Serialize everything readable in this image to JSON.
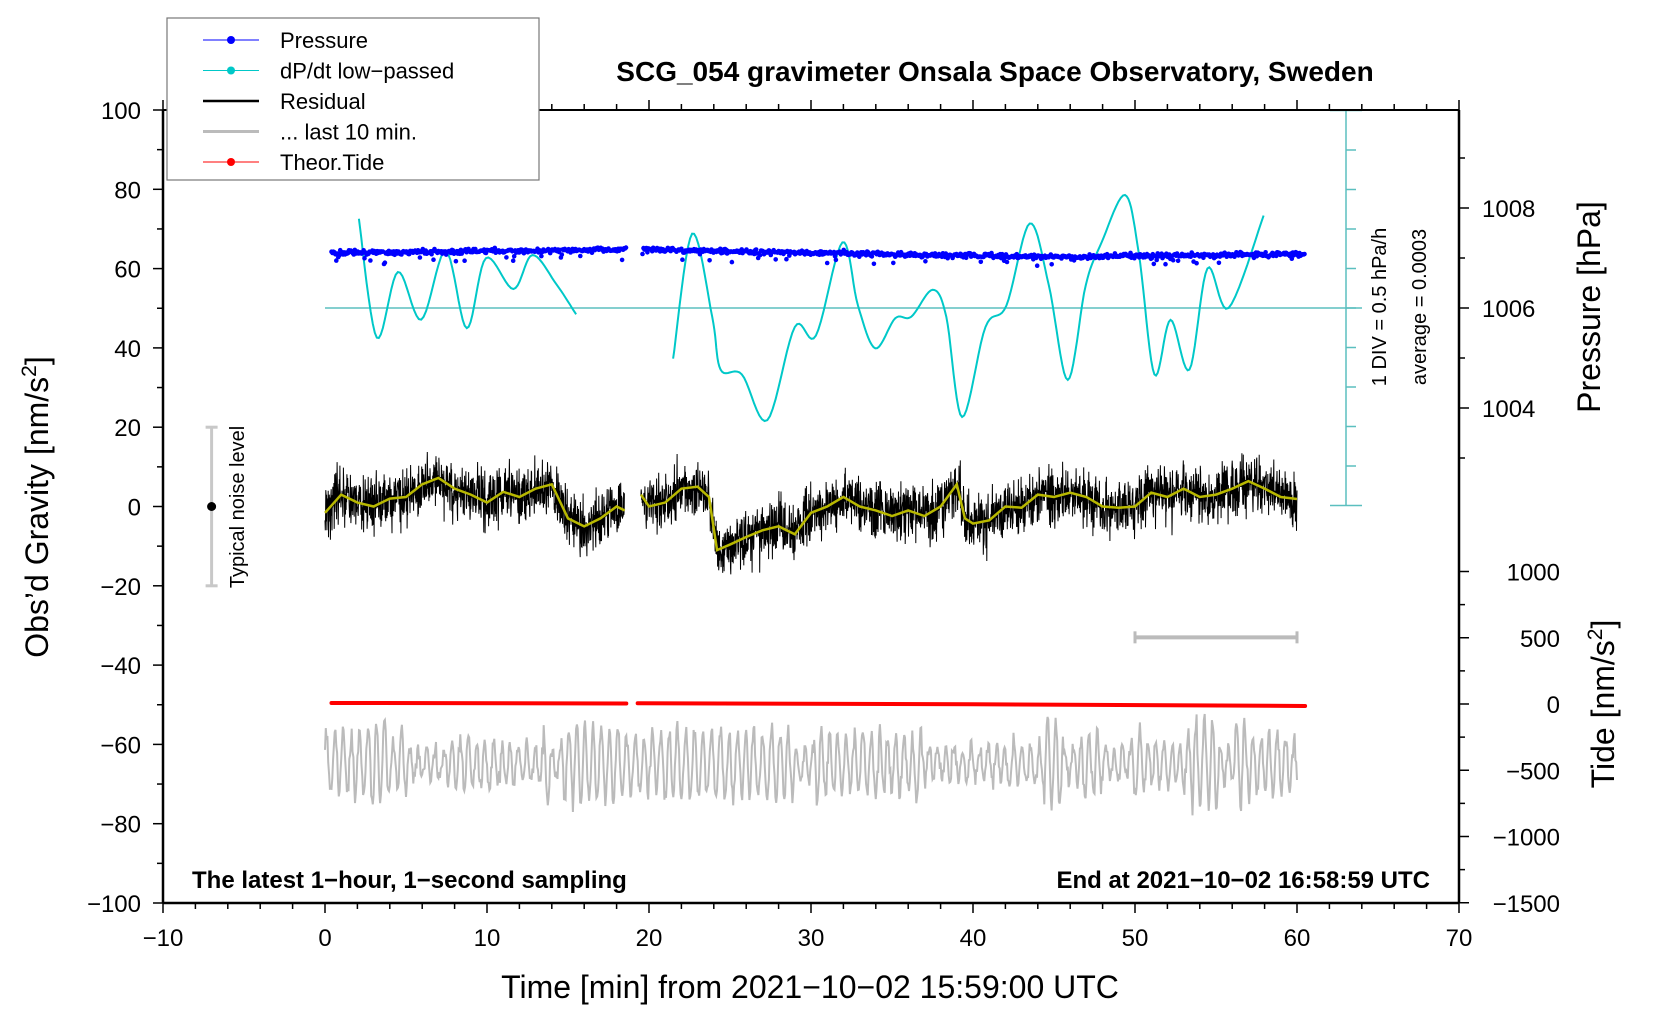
{
  "chart_data": {
    "type": "line",
    "title": "SCG_054 gravimeter Onsala Space Observatory, Sweden",
    "xlabel": "Time [min] from 2021−10−02 15:59:00 UTC",
    "ylabel": "Obs’d Gravity [nm/s",
    "ylabel_sup": "2",
    "ylabel_end": "]",
    "y2label": "Pressure [hPa]",
    "y3label": "Tide [nm/s",
    "y3label_sup": "2",
    "y3label_end": "]",
    "xlim": [
      -10,
      70
    ],
    "ylim": [
      -100,
      100
    ],
    "x_ticks": [
      -10,
      0,
      10,
      20,
      30,
      40,
      50,
      60,
      70
    ],
    "x_tick_labels": [
      "−10",
      "0",
      "10",
      "20",
      "30",
      "40",
      "50",
      "60",
      "70"
    ],
    "y_ticks": [
      -100,
      -80,
      -60,
      -40,
      -20,
      0,
      20,
      40,
      60,
      80,
      100
    ],
    "y_tick_labels": [
      "−100",
      "−80",
      "−60",
      "−40",
      "−20",
      "0",
      "20",
      "40",
      "60",
      "80",
      "100"
    ],
    "pressure_ticks": [
      1004,
      1006,
      1008
    ],
    "pressure_tick_labels": [
      "1004",
      "1006",
      "1008"
    ],
    "tide_ticks": [
      -1500,
      -1000,
      -500,
      0,
      500,
      1000
    ],
    "tide_tick_labels": [
      "−1500",
      "−1000",
      "−500",
      "0",
      "500",
      "1000"
    ],
    "grid": false,
    "legend_position": "top-left",
    "legend": [
      {
        "label": "Pressure",
        "color": "#0000ff",
        "marker": "dot"
      },
      {
        "label": "dP/dt low−passed",
        "color": "#00c8c8",
        "marker": "dot"
      },
      {
        "label": "Residual",
        "color": "#000000",
        "marker": "line"
      },
      {
        "label": "... last 10 min.",
        "color": "#bbbbbb",
        "marker": "line"
      },
      {
        "label": "Theor.Tide",
        "color": "#ff0000",
        "marker": "dot"
      }
    ],
    "annotations": {
      "bottom_left": "The latest 1−hour, 1−second sampling",
      "bottom_right": "End at 2021−10−02 16:58:59 UTC",
      "scale_div": "1 DIV = 0.5 hPa/h",
      "scale_average": "average = 0.0003",
      "noise_label": "Typical noise level"
    },
    "noise_level": {
      "x": -7,
      "center": 0,
      "half_range": 20
    },
    "last10_scale_bar": {
      "x_from": 50,
      "x_to": 60,
      "y": -33
    },
    "series": [
      {
        "name": "Pressure",
        "unit": "hPa",
        "color": "#0000ff",
        "noise": 0.05,
        "segments": [
          [
            [
              0.4,
              1007.1
            ],
            [
              10,
              1007.14
            ],
            [
              18.6,
              1007.16
            ]
          ],
          [
            [
              19.6,
              1007.17
            ],
            [
              30,
              1007.1
            ],
            [
              45,
              1007.02
            ],
            [
              60.5,
              1007.08
            ]
          ]
        ]
      },
      {
        "name": "dP/dt low-passed",
        "unit": "hPa/h",
        "color": "#00c8c8",
        "zero_level_hPa": 1006,
        "segments": [
          [
            [
              2.09,
              1.13
            ],
            [
              3.2,
              -0.375
            ],
            [
              4.5,
              0.456
            ],
            [
              5.94,
              -0.147
            ],
            [
              7.45,
              0.724
            ],
            [
              8.75,
              -0.255
            ],
            [
              9.93,
              0.63
            ],
            [
              11.63,
              0.241
            ],
            [
              12.8,
              0.67
            ],
            [
              14.3,
              0.295
            ],
            [
              15.5,
              -0.08
            ]
          ],
          [
            [
              21.49,
              -0.64
            ],
            [
              22.66,
              0.94
            ],
            [
              23.9,
              -0.11
            ],
            [
              24.42,
              -0.78
            ],
            [
              25.73,
              -0.84
            ],
            [
              27.3,
              -1.42
            ],
            [
              29.0,
              -0.24
            ],
            [
              30.3,
              -0.35
            ],
            [
              31.94,
              0.83
            ],
            [
              32.9,
              0.03
            ],
            [
              33.97,
              -0.51
            ],
            [
              35.2,
              -0.13
            ],
            [
              36.19,
              -0.11
            ],
            [
              37.5,
              0.23
            ],
            [
              38.35,
              -0.11
            ],
            [
              39.33,
              -1.38
            ],
            [
              40.77,
              -0.24
            ],
            [
              42.06,
              0.03
            ],
            [
              43.5,
              1.07
            ],
            [
              44.68,
              0.29
            ],
            [
              45.85,
              -0.91
            ],
            [
              46.96,
              0.29
            ],
            [
              47.94,
              0.83
            ],
            [
              49.38,
              1.43
            ],
            [
              50.23,
              0.7
            ],
            [
              51.2,
              -0.84
            ],
            [
              52.19,
              -0.15
            ],
            [
              53.36,
              -0.78
            ],
            [
              54.47,
              0.5
            ],
            [
              55.78,
              0.0
            ],
            [
              57.94,
              1.17
            ]
          ]
        ]
      },
      {
        "name": "Residual (smoothed)",
        "unit": "nm/s2",
        "color": "#b8b800",
        "noise_std": 3.5,
        "segments": [
          [
            [
              0,
              -1.6
            ],
            [
              1,
              3
            ],
            [
              2,
              1
            ],
            [
              3,
              0
            ],
            [
              4,
              2
            ],
            [
              5,
              2.4
            ],
            [
              6,
              5.6
            ],
            [
              7,
              7.2
            ],
            [
              8,
              4.5
            ],
            [
              9,
              3
            ],
            [
              10,
              1
            ],
            [
              11,
              3.7
            ],
            [
              12,
              2.4
            ],
            [
              13,
              4.5
            ],
            [
              14,
              5.6
            ],
            [
              15,
              -3
            ],
            [
              16,
              -5
            ],
            [
              17,
              -3
            ],
            [
              18,
              0
            ],
            [
              18.5,
              -1
            ]
          ],
          [
            [
              19.5,
              3
            ],
            [
              20,
              0
            ],
            [
              21,
              1
            ],
            [
              22,
              4.5
            ],
            [
              23,
              5
            ],
            [
              23.7,
              2.4
            ],
            [
              24.2,
              -11
            ],
            [
              25,
              -9.6
            ],
            [
              26,
              -7.7
            ],
            [
              27,
              -6
            ],
            [
              28,
              -5
            ],
            [
              29,
              -7
            ],
            [
              30,
              -1.6
            ],
            [
              31,
              0
            ],
            [
              32,
              2.4
            ],
            [
              33,
              0
            ],
            [
              34,
              -1
            ],
            [
              35,
              -2.4
            ],
            [
              36,
              -1
            ],
            [
              37,
              -2.4
            ],
            [
              38,
              0
            ],
            [
              39,
              5.6
            ],
            [
              39.5,
              -3
            ],
            [
              40,
              -4.3
            ],
            [
              41,
              -3.5
            ],
            [
              42,
              0
            ],
            [
              43,
              -0.3
            ],
            [
              44,
              3
            ],
            [
              45,
              2.4
            ],
            [
              46,
              3.5
            ],
            [
              47,
              2.4
            ],
            [
              48,
              0
            ],
            [
              49,
              -0.3
            ],
            [
              50,
              0
            ],
            [
              51,
              3.5
            ],
            [
              52,
              2.4
            ],
            [
              53,
              4.5
            ],
            [
              54,
              2.4
            ],
            [
              55,
              3
            ],
            [
              56,
              4.5
            ],
            [
              57,
              6.4
            ],
            [
              58,
              4.5
            ],
            [
              59,
              2.4
            ],
            [
              60,
              1.9
            ]
          ]
        ]
      },
      {
        "name": "... last 10 min.",
        "unit": "nm/s2",
        "color": "#bbbbbb",
        "offset": -65,
        "amplitude": 7,
        "x_range": [
          0,
          60
        ]
      },
      {
        "name": "Theor.Tide",
        "unit": "nm/s2",
        "color": "#ff0000",
        "segments": [
          [
            [
              0.4,
              8
            ],
            [
              18.6,
              4
            ]
          ],
          [
            [
              19.3,
              6
            ],
            [
              40,
              -2
            ],
            [
              60.5,
              -15
            ]
          ]
        ]
      }
    ]
  }
}
